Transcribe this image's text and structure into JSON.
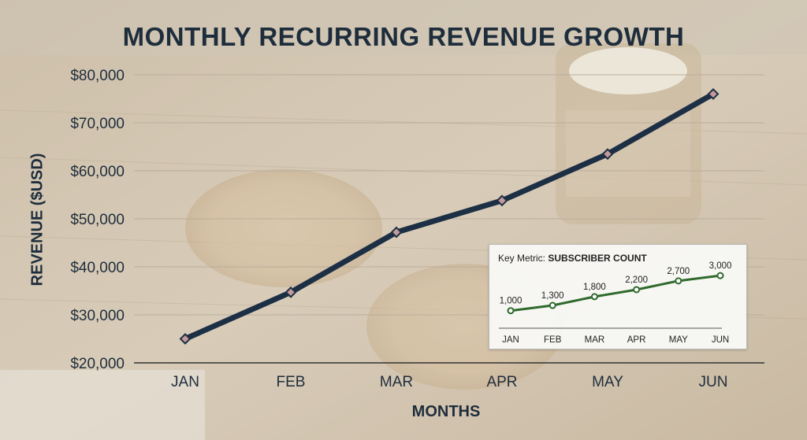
{
  "chart_data": [
    {
      "type": "line",
      "title": "MONTHLY RECURRING REVENUE GROWTH",
      "xlabel": "MONTHS",
      "ylabel": "REVENUE ($USD)",
      "categories": [
        "JAN",
        "FEB",
        "MAR",
        "APR",
        "MAY",
        "JUN"
      ],
      "values": [
        25000,
        34700,
        47200,
        53800,
        63500,
        76000
      ],
      "ylim": [
        20000,
        80000
      ],
      "yticks": [
        20000,
        30000,
        40000,
        50000,
        60000,
        70000,
        80000
      ],
      "ytick_labels": [
        "$20,000",
        "$30,000",
        "$40,000",
        "$50,000",
        "$60,000",
        "$70,000",
        "$80,000"
      ],
      "grid": true,
      "line_color": "#1c2f44",
      "marker_color": "#c49a9a"
    },
    {
      "type": "line",
      "title_prefix": "Key Metric:",
      "title": "SUBSCRIBER COUNT",
      "categories": [
        "JAN",
        "FEB",
        "MAR",
        "APR",
        "MAY",
        "JUN"
      ],
      "values": [
        1000,
        1300,
        1800,
        2200,
        2700,
        3000
      ],
      "data_labels": [
        "1,000",
        "1,300",
        "1,800",
        "2,200",
        "2,700",
        "3,000"
      ],
      "ylim": [
        0,
        3500
      ],
      "grid": false,
      "line_color": "#2f6a2c"
    }
  ]
}
